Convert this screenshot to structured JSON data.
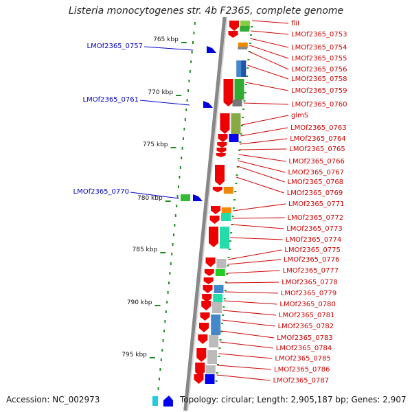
{
  "title": "Listeria monocytogenes str. 4b F2365, complete genome",
  "footer": {
    "accession": "Accession: NC_002973",
    "topology": "Topology: circular; Length: 2,905,187 bp; Genes: 2,907"
  },
  "colors": {
    "gene_label": "#cc0000",
    "feature_label": "#0000bb",
    "backbone": "#888888",
    "cds_arrow": "#ee0000",
    "tick": "#228822"
  },
  "ticks": [
    {
      "label": "765 kbp"
    },
    {
      "label": "770 kbp"
    },
    {
      "label": "775 kbp"
    },
    {
      "label": "780 kbp"
    },
    {
      "label": "785 kbp"
    },
    {
      "label": "790 kbp"
    },
    {
      "label": "795 kbp"
    }
  ],
  "left_features": [
    {
      "name": "LMOf2365_0757",
      "color": "#0000dd"
    },
    {
      "name": "LMOf2365_0761",
      "color": "#0000dd"
    },
    {
      "name": "LMOf2365_0770",
      "color": "#0000dd"
    }
  ],
  "right_genes": [
    "fliI",
    "LMOf2365_0753",
    "LMOf2365_0754",
    "LMOf2365_0755",
    "LMOf2365_0756",
    "LMOf2365_0758",
    "LMOf2365_0759",
    "LMOf2365_0760",
    "glmS",
    "LMOf2365_0763",
    "LMOf2365_0764",
    "LMOf2365_0765",
    "LMOf2365_0766",
    "LMOf2365_0767",
    "LMOf2365_0768",
    "LMOf2365_0769",
    "LMOf2365_0771",
    "LMOf2365_0772",
    "LMOf2365_0773",
    "LMOf2365_0774",
    "LMOf2365_0775",
    "LMOf2365_0776",
    "LMOf2365_0777",
    "LMOf2365_0778",
    "LMOf2365_0779",
    "LMOf2365_0780",
    "LMOf2365_0781",
    "LMOf2365_0782",
    "LMOf2365_0783",
    "LMOf2365_0784",
    "LMOf2365_0785",
    "LMOf2365_0786",
    "LMOf2365_0787"
  ]
}
